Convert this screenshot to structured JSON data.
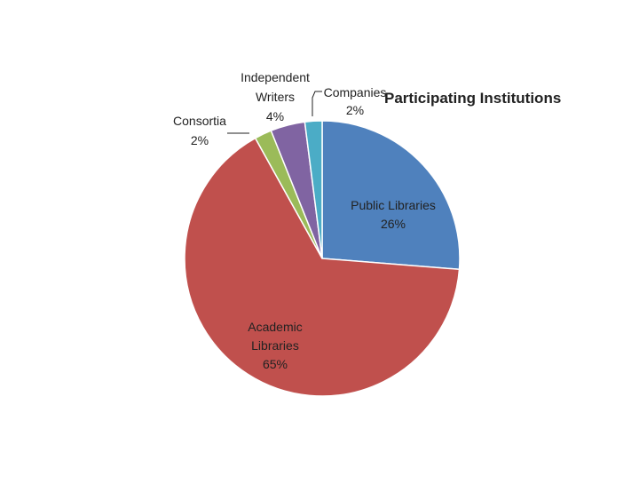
{
  "chart_data": {
    "type": "pie",
    "title": "Participating Institutions",
    "slices": [
      {
        "name": "Public Libraries",
        "value": 26,
        "label": [
          "Public Libraries",
          "26%"
        ],
        "color": "#4F81BD"
      },
      {
        "name": "Academic Libraries",
        "value": 65,
        "label": [
          "Academic",
          "Libraries",
          "65%"
        ],
        "color": "#C0504D"
      },
      {
        "name": "Consortia",
        "value": 2,
        "label": [
          "Consortia",
          "2%"
        ],
        "color": "#9BBB59"
      },
      {
        "name": "Independent Writers",
        "value": 4,
        "label": [
          "Independent",
          "Writers",
          "4%"
        ],
        "color": "#8064A2"
      },
      {
        "name": "Companies",
        "value": 2,
        "label": [
          "Companies",
          "2%"
        ],
        "color": "#4BACC6"
      }
    ],
    "start": "12 o'clock",
    "direction": "clockwise",
    "legend": "none"
  }
}
